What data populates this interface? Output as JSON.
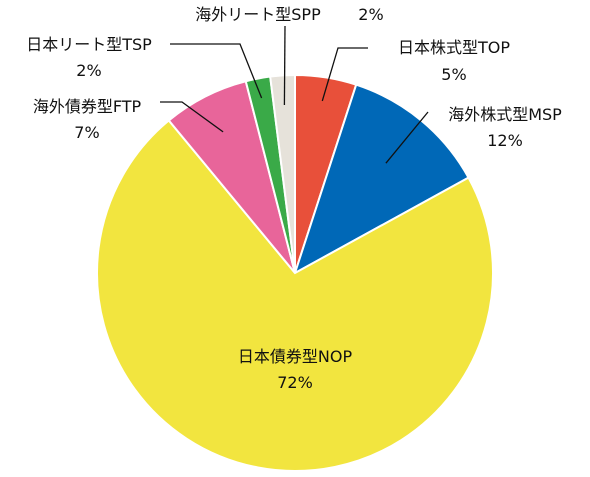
{
  "chart_data": {
    "type": "pie",
    "title": "",
    "slices": [
      {
        "name": "日本株式型TOP",
        "value": 5,
        "label": "5%",
        "color": "#E8503A"
      },
      {
        "name": "海外株式型MSP",
        "value": 12,
        "label": "12%",
        "color": "#0068B7"
      },
      {
        "name": "日本債券型NOP",
        "value": 72,
        "label": "72%",
        "color": "#F2E53F"
      },
      {
        "name": "海外債券型FTP",
        "value": 7,
        "label": "7%",
        "color": "#E8659A"
      },
      {
        "name": "日本リート型TSP",
        "value": 2,
        "label": "2%",
        "color": "#3AAA48"
      },
      {
        "name": "海外リート型SPP",
        "value": 2,
        "label": "2%",
        "color": "#E6E2DA"
      }
    ],
    "start_angle": "12 o'clock",
    "direction": "clockwise",
    "legend": "none (labels beside slices)"
  }
}
